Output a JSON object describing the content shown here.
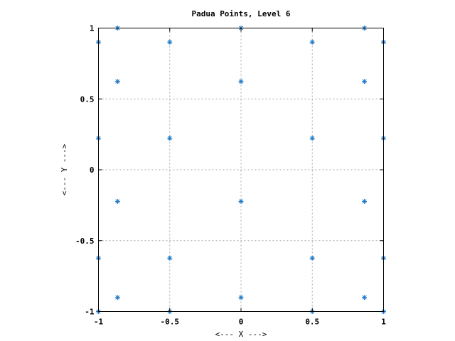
{
  "chart_data": {
    "type": "scatter",
    "title": "Padua Points, Level 6",
    "xlabel": "<--- X --->",
    "ylabel": "<--- Y --->",
    "xlim": [
      -1,
      1
    ],
    "ylim": [
      -1,
      1
    ],
    "x_ticks": [
      -1,
      -0.5,
      0,
      0.5,
      1
    ],
    "y_ticks": [
      -1,
      -0.5,
      0,
      0.5,
      1
    ],
    "x_tick_labels": [
      "-1",
      "-0.5",
      "0",
      "0.5",
      "1"
    ],
    "y_tick_labels": [
      "-1",
      "-0.5",
      "0",
      "0.5",
      "1"
    ],
    "grid": true,
    "marker": "asterisk",
    "color": "#1f78c8",
    "points": [
      {
        "x": -1,
        "y": -1
      },
      {
        "x": -1,
        "y": -0.623
      },
      {
        "x": -1,
        "y": 0.223
      },
      {
        "x": -1,
        "y": 0.901
      },
      {
        "x": -0.866,
        "y": -0.901
      },
      {
        "x": -0.866,
        "y": -0.223
      },
      {
        "x": -0.866,
        "y": 0.623
      },
      {
        "x": -0.866,
        "y": 1
      },
      {
        "x": -0.5,
        "y": -1
      },
      {
        "x": -0.5,
        "y": -0.623
      },
      {
        "x": -0.5,
        "y": 0.223
      },
      {
        "x": -0.5,
        "y": 0.901
      },
      {
        "x": 0,
        "y": -0.901
      },
      {
        "x": 0,
        "y": -0.223
      },
      {
        "x": 0,
        "y": 0.623
      },
      {
        "x": 0,
        "y": 1
      },
      {
        "x": 0.5,
        "y": -1
      },
      {
        "x": 0.5,
        "y": -0.623
      },
      {
        "x": 0.5,
        "y": 0.223
      },
      {
        "x": 0.5,
        "y": 0.901
      },
      {
        "x": 0.866,
        "y": -0.901
      },
      {
        "x": 0.866,
        "y": -0.223
      },
      {
        "x": 0.866,
        "y": 0.623
      },
      {
        "x": 0.866,
        "y": 1
      },
      {
        "x": 1,
        "y": -1
      },
      {
        "x": 1,
        "y": -0.623
      },
      {
        "x": 1,
        "y": 0.223
      },
      {
        "x": 1,
        "y": 0.901
      }
    ]
  }
}
